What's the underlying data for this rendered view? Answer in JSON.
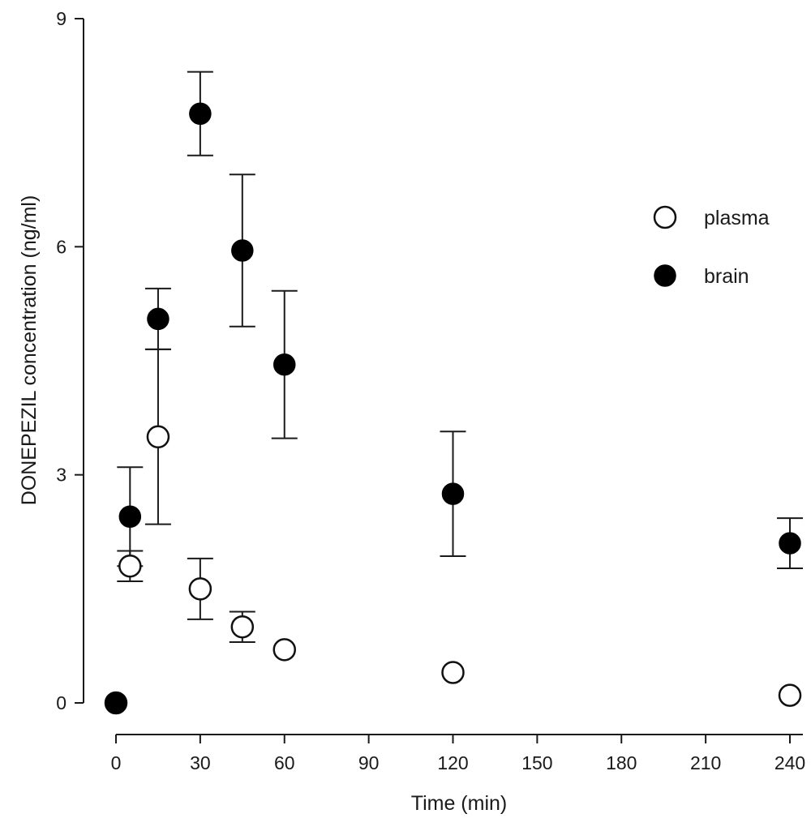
{
  "chart_data": {
    "type": "scatter",
    "title": "",
    "xlabel": "Time (min)",
    "ylabel": "DONEPEZIL concentration (ng/ml)",
    "xlim": [
      0,
      240
    ],
    "ylim": [
      0,
      9
    ],
    "xticks": [
      0,
      30,
      60,
      90,
      120,
      150,
      180,
      210,
      240
    ],
    "yticks": [
      0,
      3,
      6,
      9
    ],
    "grid": false,
    "legend_position": "right",
    "series": [
      {
        "name": "plasma",
        "marker": "open-circle",
        "color": "#111111",
        "x": [
          0,
          5,
          15,
          30,
          45,
          60,
          120,
          240
        ],
        "y": [
          0,
          1.8,
          3.5,
          1.5,
          1.0,
          0.7,
          0.4,
          0.1
        ],
        "error": [
          null,
          0.2,
          1.15,
          0.4,
          0.2,
          null,
          null,
          null
        ]
      },
      {
        "name": "brain",
        "marker": "filled-circle",
        "color": "#000000",
        "x": [
          0,
          5,
          15,
          30,
          45,
          60,
          120,
          240
        ],
        "y": [
          0,
          2.45,
          5.05,
          7.75,
          5.95,
          4.45,
          2.75,
          2.1
        ],
        "error": [
          null,
          0.65,
          0.4,
          0.55,
          1.0,
          0.97,
          0.82,
          0.33
        ]
      }
    ]
  }
}
